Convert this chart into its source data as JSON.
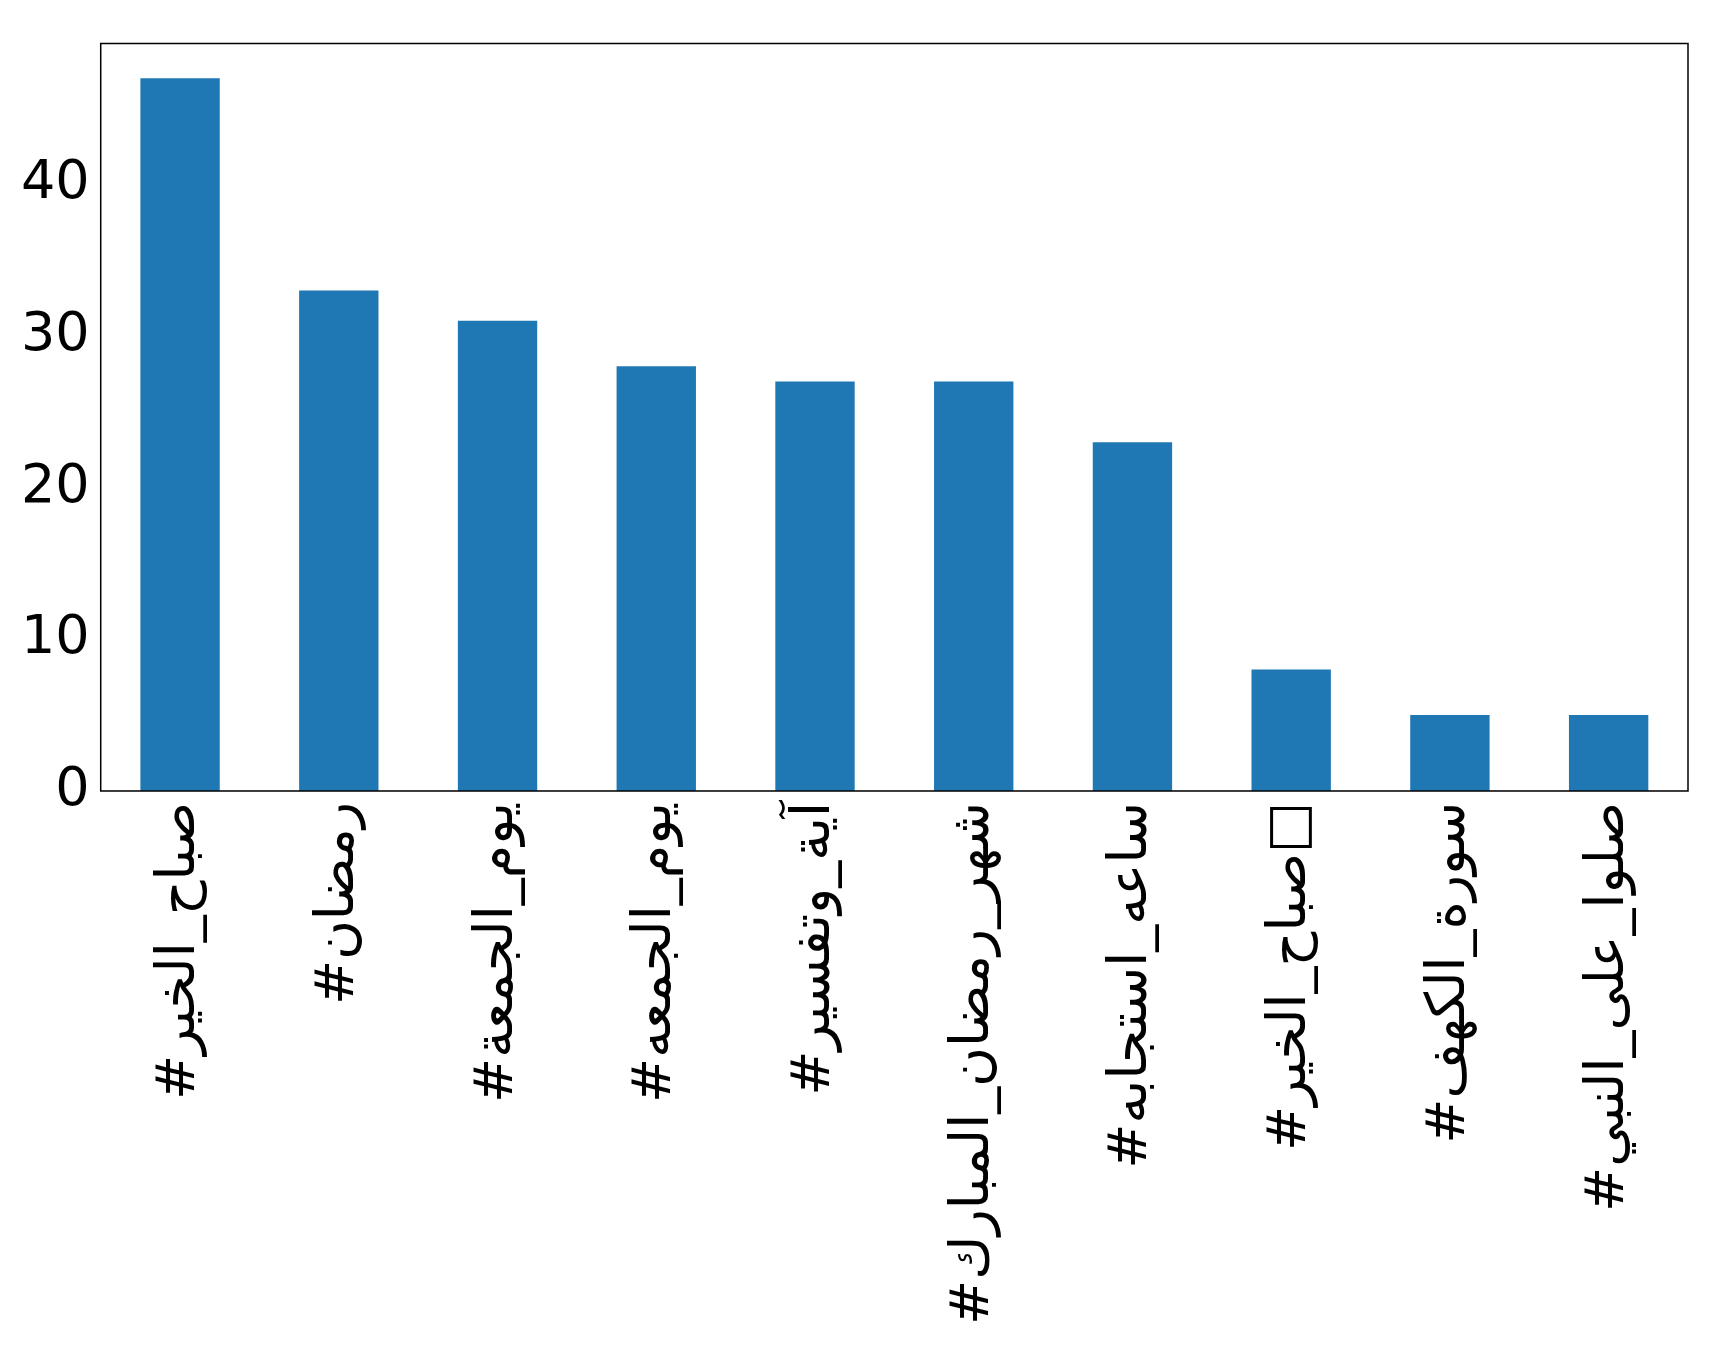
{
  "chart_data": {
    "type": "bar",
    "categories": [
      "#صباح_الخير",
      "#رمضان",
      "#يوم_الجمعة",
      "#يوم_الجمعه",
      "#آية_وتفسير",
      "#شهر_رمضان_المبارك",
      "#ساعه_استجابه",
      "#صباح_الخير□",
      "#سورة_الكهف",
      "#صلوا_على_النبي"
    ],
    "values": [
      47,
      33,
      31,
      28,
      27,
      27,
      23,
      8,
      5,
      5
    ],
    "color": "#1f77b4",
    "ylim": [
      0,
      49.3
    ],
    "yticks": [
      0,
      10,
      20,
      30,
      40
    ],
    "grid": false,
    "legend": false
  }
}
